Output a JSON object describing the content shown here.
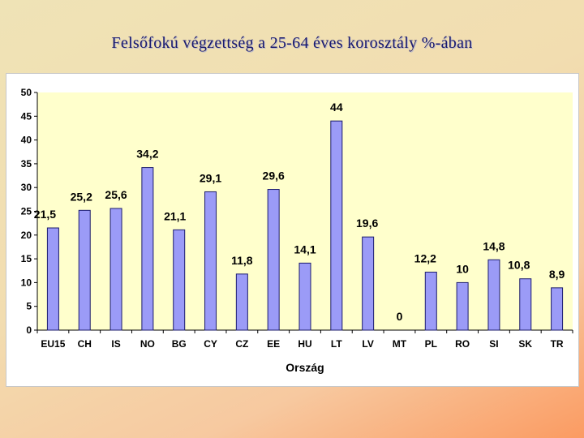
{
  "title": "Felsőfokú végzettség a 25-64 éves korosztály %-ában",
  "chart_data": {
    "type": "bar",
    "categories": [
      "EU15",
      "CH",
      "IS",
      "NO",
      "BG",
      "CY",
      "CZ",
      "EE",
      "HU",
      "LT",
      "LV",
      "MT",
      "PL",
      "RO",
      "SI",
      "SK",
      "TR"
    ],
    "values": [
      21.5,
      25.2,
      25.6,
      34.2,
      21.1,
      29.1,
      11.8,
      29.6,
      14.1,
      44,
      19.6,
      0,
      12.2,
      10,
      14.8,
      10.8,
      8.9
    ],
    "data_labels": [
      "21,5",
      "25,2",
      "25,6",
      "34,2",
      "21,1",
      "29,1",
      "11,8",
      "29,6",
      "14,1",
      "44",
      "19,6",
      "0",
      "12,2",
      "10",
      "14,8",
      "10,8",
      "8,9"
    ],
    "title": "",
    "xlabel": "Ország",
    "ylabel": "",
    "ylim": [
      0,
      50
    ],
    "yticks": [
      "0",
      "5",
      "10",
      "15",
      "20",
      "25",
      "30",
      "35",
      "40",
      "45",
      "50"
    ],
    "grid": false,
    "legend": "none",
    "colors": {
      "bar_fill": "#9b9bf7",
      "bar_stroke": "#1c1c6e",
      "plot_bg": "#ffffcc",
      "axis": "#000000"
    }
  }
}
